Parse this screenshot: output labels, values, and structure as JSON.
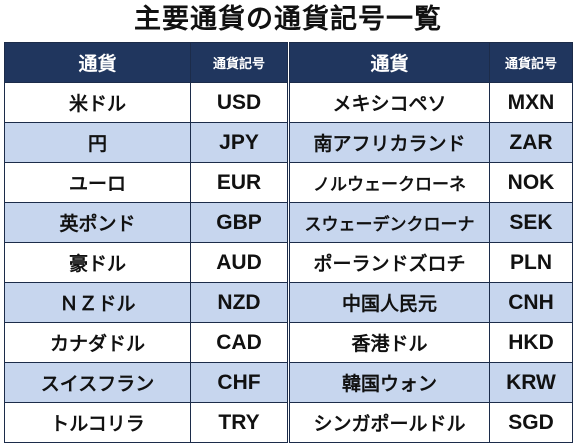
{
  "title": "主要通貨の通貨記号一覧",
  "headers": {
    "currency": "通貨",
    "code": "通貨記号"
  },
  "left_rows": [
    {
      "name": "米ドル",
      "code": "USD"
    },
    {
      "name": "円",
      "code": "JPY"
    },
    {
      "name": "ユーロ",
      "code": "EUR"
    },
    {
      "name": "英ポンド",
      "code": "GBP"
    },
    {
      "name": "豪ドル",
      "code": "AUD"
    },
    {
      "name": "ＮＺドル",
      "code": "NZD"
    },
    {
      "name": "カナダドル",
      "code": "CAD"
    },
    {
      "name": "スイスフラン",
      "code": "CHF"
    },
    {
      "name": "トルコリラ",
      "code": "TRY"
    }
  ],
  "right_rows": [
    {
      "name": "メキシコペソ",
      "code": "MXN"
    },
    {
      "name": "南アフリカランド",
      "code": "ZAR"
    },
    {
      "name": "ノルウェークローネ",
      "code": "NOK"
    },
    {
      "name": "スウェーデンクローナ",
      "code": "SEK"
    },
    {
      "name": "ポーランドズロチ",
      "code": "PLN"
    },
    {
      "name": "中国人民元",
      "code": "CNH"
    },
    {
      "name": "香港ドル",
      "code": "HKD"
    },
    {
      "name": "韓国ウォン",
      "code": "KRW"
    },
    {
      "name": "シンガポールドル",
      "code": "SGD"
    }
  ],
  "colors": {
    "header_bg": "#20365e",
    "header_text": "#ffffff",
    "stripe_bg": "#c7d6ee",
    "border": "#1c2c4a"
  }
}
